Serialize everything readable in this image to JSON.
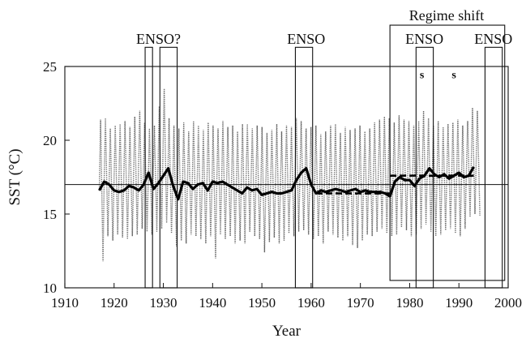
{
  "chart_data": {
    "type": "line",
    "title": "",
    "xlabel": "Year",
    "ylabel": "SST (°C)",
    "xlim": [
      1910,
      2000
    ],
    "ylim": [
      10,
      25
    ],
    "xticks": [
      1910,
      1920,
      1930,
      1940,
      1950,
      1960,
      1970,
      1980,
      1990,
      2000
    ],
    "yticks": [
      10,
      15,
      20,
      25
    ],
    "grid": false,
    "reference_line_y": 17,
    "monthly_sst": {
      "x_start": 1917,
      "x_end": 1994.5,
      "annual_max": [
        21.4,
        21.5,
        20.8,
        21.0,
        21.1,
        21.3,
        20.9,
        21.6,
        22.0,
        21.2,
        20.8,
        21.0,
        22.3,
        23.5,
        21.5,
        21.0,
        20.8,
        21.2,
        20.6,
        21.3,
        21.0,
        20.7,
        21.2,
        21.0,
        20.8,
        21.3,
        20.9,
        21.0,
        20.6,
        21.1,
        21.1,
        20.8,
        21.0,
        20.9,
        20.5,
        20.7,
        21.1,
        20.6,
        21.0,
        20.9,
        21.5,
        21.3,
        20.8,
        20.9,
        21.0,
        20.4,
        20.6,
        21.0,
        21.1,
        20.5,
        20.9,
        20.7,
        20.8,
        21.0,
        20.6,
        20.8,
        21.2,
        21.4,
        21.6,
        21.5,
        21.2,
        21.7,
        21.4,
        21.3,
        21.0,
        21.3,
        22.0,
        21.5,
        21.0,
        21.3,
        20.9,
        21.1,
        21.2,
        21.4,
        21.0,
        21.3,
        22.2,
        22.0
      ],
      "annual_min": [
        11.8,
        13.5,
        13.2,
        13.6,
        13.4,
        13.3,
        13.5,
        13.6,
        14.0,
        13.8,
        13.6,
        13.8,
        14.0,
        14.4,
        13.7,
        12.8,
        13.2,
        13.0,
        13.6,
        13.5,
        13.3,
        13.0,
        13.5,
        12.0,
        13.6,
        13.3,
        13.5,
        13.0,
        13.2,
        13.0,
        13.8,
        13.5,
        13.3,
        12.4,
        13.1,
        13.4,
        13.0,
        13.2,
        13.7,
        13.5,
        13.8,
        13.9,
        13.6,
        13.3,
        13.5,
        13.0,
        13.8,
        13.6,
        13.4,
        13.2,
        13.5,
        12.9,
        12.7,
        13.2,
        13.6,
        13.5,
        13.8,
        14.0,
        13.7,
        13.5,
        13.6,
        14.1,
        13.9,
        13.5,
        13.6,
        14.0,
        14.3,
        13.8,
        13.5,
        13.6,
        13.9,
        14.0,
        13.7,
        13.5,
        14.0,
        14.8,
        15.0,
        14.9
      ]
    },
    "smoothed_sst": {
      "x": [
        1917,
        1918,
        1919,
        1920,
        1921,
        1922,
        1923,
        1924,
        1925,
        1926,
        1927,
        1928,
        1929,
        1930,
        1931,
        1932,
        1933,
        1934,
        1935,
        1936,
        1937,
        1938,
        1939,
        1940,
        1941,
        1942,
        1943,
        1944,
        1945,
        1946,
        1947,
        1948,
        1949,
        1950,
        1951,
        1952,
        1953,
        1954,
        1955,
        1956,
        1957,
        1958,
        1959,
        1960,
        1961,
        1962,
        1963,
        1964,
        1965,
        1966,
        1967,
        1968,
        1969,
        1970,
        1971,
        1972,
        1973,
        1974,
        1975,
        1976,
        1977,
        1978,
        1979,
        1980,
        1981,
        1982,
        1983,
        1984,
        1985,
        1986,
        1987,
        1988,
        1989,
        1990,
        1991,
        1992,
        1993
      ],
      "y": [
        16.6,
        17.2,
        17.0,
        16.6,
        16.5,
        16.6,
        16.9,
        16.8,
        16.6,
        17.0,
        17.8,
        16.7,
        17.1,
        17.6,
        18.1,
        16.9,
        16.0,
        17.2,
        17.1,
        16.7,
        17.0,
        17.1,
        16.6,
        17.2,
        17.1,
        17.2,
        17.0,
        16.8,
        16.6,
        16.4,
        16.8,
        16.6,
        16.7,
        16.3,
        16.4,
        16.5,
        16.4,
        16.4,
        16.5,
        16.6,
        17.3,
        17.8,
        18.1,
        17.0,
        16.4,
        16.6,
        16.5,
        16.6,
        16.7,
        16.6,
        16.5,
        16.6,
        16.7,
        16.5,
        16.6,
        16.5,
        16.5,
        16.5,
        16.4,
        16.2,
        17.2,
        17.5,
        17.3,
        17.3,
        16.9,
        17.4,
        17.6,
        18.1,
        17.7,
        17.5,
        17.7,
        17.4,
        17.6,
        17.8,
        17.5,
        17.6,
        18.2
      ]
    },
    "regime_means": [
      {
        "x": [
          1961,
          1976
        ],
        "y": 16.4
      },
      {
        "x": [
          1976,
          1993
        ],
        "y": 17.6
      }
    ],
    "annotations": [
      {
        "text": "ENSO?",
        "x_range": [
          1926,
          1932
        ]
      },
      {
        "text": "ENSO",
        "x_range": [
          1957,
          1961
        ]
      },
      {
        "text": "ENSO",
        "x_range": [
          1981,
          1985
        ]
      },
      {
        "text": "ENSO",
        "x_range": [
          1995,
          1999
        ]
      },
      {
        "text": "Regime shift",
        "x_range": [
          1976,
          1999
        ]
      },
      {
        "text": "s",
        "x": 1982.5,
        "y": 24.2
      },
      {
        "text": "s",
        "x": 1989,
        "y": 24.2
      }
    ],
    "boxes": [
      {
        "x_range": [
          1926.3,
          1927.8
        ],
        "y_range": [
          10,
          26.3
        ]
      },
      {
        "x_range": [
          1929.3,
          1932.8
        ],
        "y_range": [
          10,
          26.3
        ]
      },
      {
        "x_range": [
          1956.8,
          1960.3
        ],
        "y_range": [
          10,
          26.3
        ]
      },
      {
        "x_range": [
          1981.3,
          1984.8
        ],
        "y_range": [
          10,
          26.3
        ]
      },
      {
        "x_range": [
          1995.3,
          1998.8
        ],
        "y_range": [
          10,
          26.3
        ]
      },
      {
        "x_range": [
          1976,
          1999.3
        ],
        "y_range": [
          10.5,
          27.8
        ]
      }
    ]
  }
}
